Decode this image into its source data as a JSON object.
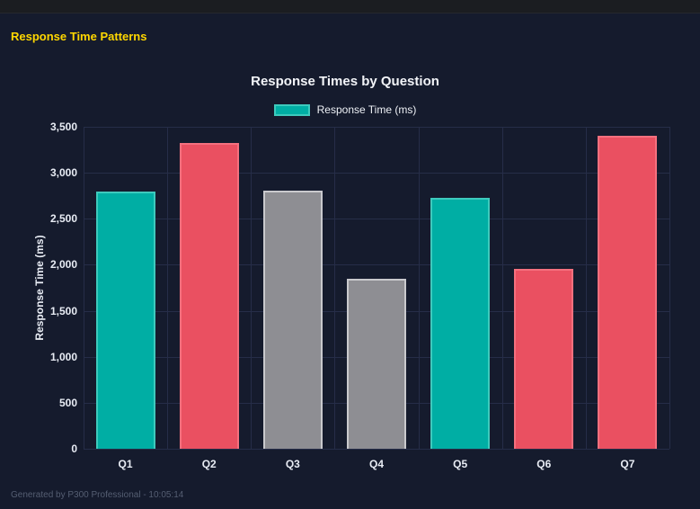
{
  "window": {
    "header_title": "Response Time Patterns"
  },
  "footer": {
    "text": "Generated by P300 Professional - 10:05:14"
  },
  "chart_data": {
    "type": "bar",
    "title": "Response Times by Question",
    "legend": [
      {
        "label": "Response Time (ms)",
        "color": "#00aea4",
        "border_color": "#3ecabd"
      }
    ],
    "legend_position": "top",
    "categories": [
      "Q1",
      "Q2",
      "Q3",
      "Q4",
      "Q5",
      "Q6",
      "Q7"
    ],
    "values": [
      2800,
      3320,
      2810,
      1850,
      2730,
      1960,
      3400
    ],
    "bar_colors": [
      "#00aea4",
      "#ea5061",
      "#8e8e93",
      "#8e8e93",
      "#00aea4",
      "#ea5061",
      "#ea5061"
    ],
    "bar_border_colors": [
      "#3ecabd",
      "#f5707e",
      "#c9c9cd",
      "#c9c9cd",
      "#3ecabd",
      "#f5707e",
      "#f5707e"
    ],
    "xlabel": "",
    "ylabel": "Response Time (ms)",
    "ylim": [
      0,
      3500
    ],
    "ytick_step": 500,
    "grid": true
  },
  "colors": {
    "background": "#151b2d",
    "top_strip": "#1b1d21",
    "section_title": "#ffd700",
    "grid": "#262d48",
    "axis_text": "#e8ecf4",
    "chart_title": "#f2f4f8",
    "footer_text": "#555e72"
  }
}
